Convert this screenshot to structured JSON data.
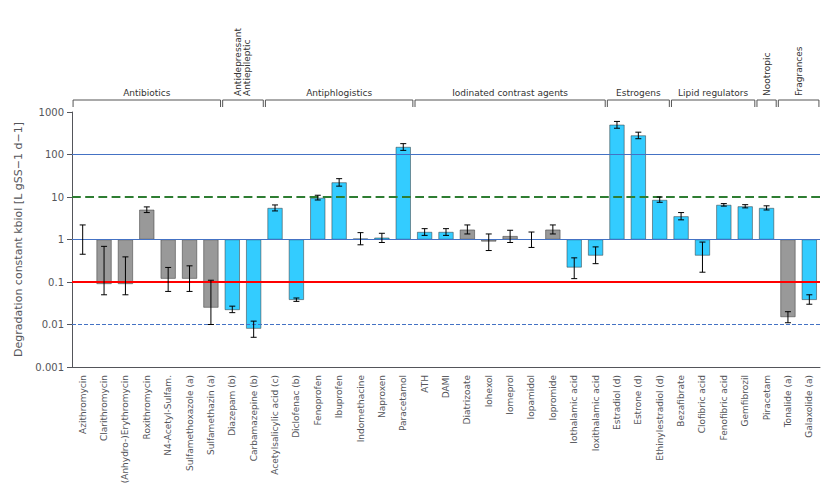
{
  "chart_data": {
    "type": "bar",
    "ylabel": "Degradation constant kbiol [L gSS−1 d−1]",
    "categories": [
      "Azithromycin",
      "Clarithromycin",
      "(Anhydro-)Erythromycin",
      "Roxithromycin",
      "N4-Acetyl-Sulfam.",
      "Sulfamethoxazole (a)",
      "Sulfamethazin (a)",
      "Diazepam (b)",
      "Carbamazepine (b)",
      "Acetylsalicylic acid (c)",
      "Diclofenac (b)",
      "Fenoprofen",
      "Ibuprofen",
      "Indomethacine",
      "Naproxen",
      "Paracetamol",
      "ATH",
      "DAMI",
      "Diatrizoate",
      "Iohexol",
      "Iomeprol",
      "Iopamidol",
      "Iopromide",
      "Iothalamic acid",
      "Ioxithalamic acid",
      "Estradiol (d)",
      "Estrone (d)",
      "Ethinylestradiol (d)",
      "Bezafibrate",
      "Clofibric acid",
      "Fenofibric acid",
      "Gemfibrozil",
      "Piracetam",
      "Tonalide (a)",
      "Galaxolide (a)"
    ],
    "values": [
      1.0,
      0.09,
      0.09,
      5.0,
      0.12,
      0.12,
      0.025,
      0.022,
      0.008,
      5.5,
      0.038,
      9.5,
      22.0,
      1.05,
      1.1,
      150.0,
      1.5,
      1.5,
      1.7,
      0.9,
      1.2,
      1.0,
      1.7,
      0.22,
      0.42,
      500.0,
      280.0,
      8.5,
      3.5,
      0.42,
      6.5,
      6.0,
      5.5,
      0.015,
      0.038
    ],
    "err_up": [
      1.2,
      0.6,
      0.3,
      0.85,
      0.1,
      0.12,
      0.085,
      0.005,
      0.004,
      1.0,
      0.004,
      1.5,
      5.0,
      0.4,
      0.3,
      30.0,
      0.3,
      0.3,
      0.5,
      0.45,
      0.45,
      0.5,
      0.5,
      0.15,
      0.25,
      100.0,
      55.0,
      1.5,
      0.8,
      0.45,
      0.5,
      0.6,
      0.7,
      0.005,
      0.012
    ],
    "err_dn": [
      0.55,
      0.04,
      0.04,
      0.7,
      0.06,
      0.06,
      0.015,
      0.003,
      0.003,
      0.8,
      0.003,
      1.0,
      4.0,
      0.3,
      0.25,
      25.0,
      0.25,
      0.25,
      0.35,
      0.35,
      0.35,
      0.35,
      0.35,
      0.1,
      0.15,
      85.0,
      45.0,
      1.0,
      0.6,
      0.25,
      0.4,
      0.45,
      0.55,
      0.004,
      0.008
    ],
    "colors": [
      "#999999",
      "#999999",
      "#999999",
      "#999999",
      "#999999",
      "#999999",
      "#999999",
      "#33CCFF",
      "#33CCFF",
      "#33CCFF",
      "#33CCFF",
      "#33CCFF",
      "#33CCFF",
      "#33CCFF",
      "#33CCFF",
      "#33CCFF",
      "#33CCFF",
      "#33CCFF",
      "#999999",
      "#999999",
      "#999999",
      "#999999",
      "#999999",
      "#33CCFF",
      "#33CCFF",
      "#33CCFF",
      "#33CCFF",
      "#33CCFF",
      "#33CCFF",
      "#33CCFF",
      "#33CCFF",
      "#33CCFF",
      "#33CCFF",
      "#999999",
      "#33CCFF"
    ],
    "hlines": [
      {
        "y": 100,
        "color": "#4472C4",
        "line_style": "solid"
      },
      {
        "y": 1,
        "color": "#4472C4",
        "line_style": "solid"
      },
      {
        "y": 0.01,
        "color": "#4472C4",
        "line_style": "dashed"
      },
      {
        "y": 10,
        "color": "#2E7D32",
        "line_style": "dashed"
      },
      {
        "y": 0.1,
        "color": "red",
        "line_style": "solid"
      }
    ],
    "annotations": [
      {
        "text": "Antibiotics",
        "first": "Azithromycin",
        "last": "Sulfamethazin (a)"
      },
      {
        "text": "Antidepressant\nAntiepileptic",
        "first": "Diazepam (b)",
        "last": "Carbamazepine (b)"
      },
      {
        "text": "Antiphlogistics",
        "first": "Acetylsalicylic acid (c)",
        "last": "Paracetamol"
      },
      {
        "text": "Iodinated contrast agents",
        "first": "ATH",
        "last": "Ioxithalamic acid"
      },
      {
        "text": "Estrogens",
        "first": "Estradiol (d)",
        "last": "Ethinylestradiol (d)"
      },
      {
        "text": "Lipid regulators",
        "first": "Bezafibrate",
        "last": "Gemfibrozil"
      },
      {
        "text": "Nootropic",
        "first": "Piracetam",
        "last": "Piracetam"
      },
      {
        "text": "Fragrances",
        "first": "Tonalide (a)",
        "last": "Galaxolide (a)"
      }
    ],
    "log": "y",
    "ylim": [
      0.001,
      1000
    ],
    "yticks": [
      0.001,
      0.01,
      0.1,
      1,
      10,
      100,
      1000
    ],
    "grid": false
  }
}
